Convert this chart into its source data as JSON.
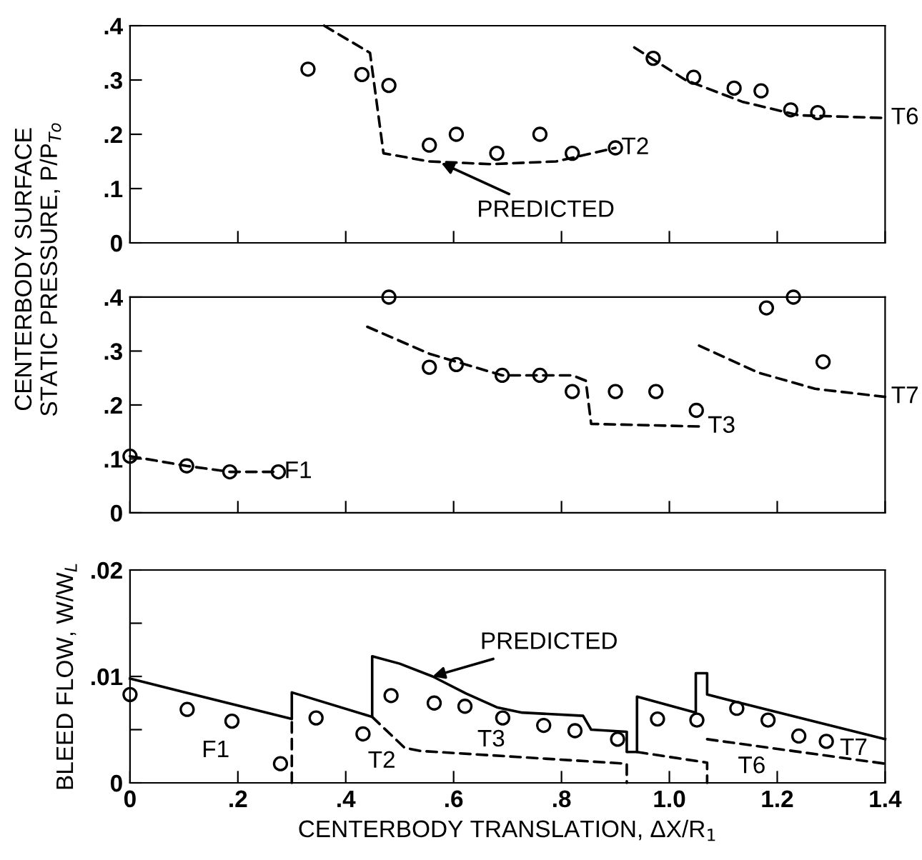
{
  "chart_data": [
    {
      "type": "line",
      "ylabel": "CENTERBODY SURFACE\nSTATIC PRESSURE, P/P$_{To}$",
      "xlim": [
        0,
        1.4
      ],
      "xticks": [
        0,
        0.2,
        0.4,
        0.6,
        0.8,
        1.0,
        1.2,
        1.4
      ],
      "ylim": [
        0,
        0.4
      ],
      "yticks": [
        0,
        {
          "value": 0.1,
          "label": ".1"
        },
        {
          "value": 0.2,
          "label": ".2"
        },
        {
          "value": 0.3,
          "label": ".3"
        },
        {
          "value": 0.4,
          "label": ".4"
        }
      ],
      "tick_labels": "y",
      "series": [
        {
          "type": "scatter",
          "marker": "circle",
          "color": "#000000",
          "x": [
            0.33,
            0.43,
            0.48,
            0.555,
            0.605,
            0.68,
            0.76,
            0.82,
            0.9,
            0.97,
            1.045,
            1.12,
            1.17,
            1.225,
            1.275
          ],
          "values": [
            0.32,
            0.31,
            0.29,
            0.18,
            0.2,
            0.165,
            0.2,
            0.165,
            0.175,
            0.34,
            0.305,
            0.285,
            0.28,
            0.245,
            0.24
          ]
        },
        {
          "line_style": "dashed",
          "color": "#000000",
          "x": [
            0.36,
            0.445,
            0.47,
            0.555,
            0.67,
            0.79,
            0.9
          ],
          "values": [
            0.4,
            0.35,
            0.165,
            0.15,
            0.145,
            0.15,
            0.175
          ]
        },
        {
          "line_style": "dashed",
          "color": "#000000",
          "x": [
            0.935,
            1.03,
            1.135,
            1.24,
            1.4
          ],
          "values": [
            0.36,
            0.3,
            0.26,
            0.235,
            0.23
          ]
        }
      ],
      "annotations": [
        {
          "text": "T2",
          "x": 0.9,
          "y": 0.175
        },
        {
          "text": "T6",
          "x": 1.4,
          "y": 0.23
        },
        {
          "text": "PREDICTED",
          "x": 0.577,
          "y": 0.147
        }
      ]
    },
    {
      "type": "line",
      "xlim": [
        0,
        1.4
      ],
      "xticks": [
        0,
        0.2,
        0.4,
        0.6,
        0.8,
        1.0,
        1.2,
        1.4
      ],
      "ylim": [
        0,
        0.4
      ],
      "yticks": [
        0,
        {
          "value": 0.1,
          "label": ".1"
        },
        {
          "value": 0.2,
          "label": ".2"
        },
        {
          "value": 0.3,
          "label": ".3"
        },
        {
          "value": 0.4,
          "label": ".4"
        }
      ],
      "tick_labels": "y",
      "series": [
        {
          "type": "scatter",
          "marker": "circle",
          "color": "#000000",
          "x": [
            0,
            0.105,
            0.185,
            0.275,
            0.48,
            0.555,
            0.605,
            0.69,
            0.76,
            0.82,
            0.9,
            0.975,
            1.05,
            1.12,
            1.18,
            1.23,
            1.285
          ],
          "values": [
            0.105,
            0.087,
            0.076,
            0.076,
            0.4,
            0.27,
            0.275,
            0.255,
            0.255,
            0.225,
            0.225,
            0.225,
            0.19,
            null,
            0.38,
            0.4,
            0.28
          ]
        },
        {
          "line_style": "dashed",
          "color": "#000000",
          "x": [
            0,
            0.105,
            0.185,
            0.275
          ],
          "values": [
            0.105,
            0.087,
            0.076,
            0.076
          ]
        },
        {
          "line_style": "dashed",
          "color": "#000000",
          "x": [
            0.44,
            0.555,
            0.69,
            0.82,
            0.845,
            0.855,
            1.06
          ],
          "values": [
            0.345,
            0.295,
            0.255,
            0.255,
            0.245,
            0.165,
            0.16
          ]
        },
        {
          "line_style": "dashed",
          "color": "#000000",
          "x": [
            1.055,
            1.165,
            1.27,
            1.4
          ],
          "values": [
            0.31,
            0.26,
            0.23,
            0.215
          ]
        }
      ],
      "annotations": [
        {
          "text": "F1",
          "x": 0.275,
          "y": 0.076
        },
        {
          "text": "T3",
          "x": 1.06,
          "y": 0.16
        },
        {
          "text": "T7",
          "x": 1.4,
          "y": 0.215
        }
      ]
    },
    {
      "type": "line",
      "ylabel": "BLEED FLOW, W/W$_{L}$",
      "xlabel": "CENTERBODY TRANSLATION, ΔX/R$_{1}$",
      "xlim": [
        0,
        1.4
      ],
      "xticks": [
        0,
        {
          "value": 0.2,
          "label": ".2"
        },
        {
          "value": 0.4,
          "label": ".4"
        },
        {
          "value": 0.6,
          "label": ".6"
        },
        {
          "value": 0.8,
          "label": ".8"
        },
        {
          "value": 1.0,
          "label": "1.0"
        },
        {
          "value": 1.2,
          "label": "1.2"
        },
        1.4
      ],
      "ylim": [
        0,
        0.02
      ],
      "yticks": [
        0,
        {
          "value": 0.005,
          "label": null
        },
        {
          "value": 0.01,
          "label": ".01"
        },
        {
          "value": 0.015,
          "label": null
        },
        {
          "value": 0.02,
          "label": ".02"
        }
      ],
      "series": [
        {
          "type": "scatter",
          "marker": "circle",
          "color": "#000000",
          "x": [
            0,
            0.106,
            0.189,
            0.279,
            0.345,
            0.432,
            0.484,
            0.564,
            0.621,
            0.691,
            0.767,
            0.825,
            0.904,
            0.978,
            1.051,
            1.125,
            1.183,
            1.24,
            1.291
          ],
          "values": [
            0.0083,
            0.0069,
            0.0058,
            0.0018,
            0.0061,
            0.0046,
            0.0082,
            0.0075,
            0.0072,
            0.0061,
            0.0054,
            0.0049,
            0.0041,
            0.006,
            0.0059,
            0.007,
            0.0059,
            0.0044,
            0.0039
          ]
        },
        {
          "line_style": "solid",
          "color": "#000000",
          "x": [
            0,
            0.3,
            0.3,
            0.449,
            0.449,
            0.5,
            0.561,
            0.623,
            0.68,
            0.727,
            0.84,
            0.855,
            0.921,
            0.921,
            0.94,
            0.94,
            1.049,
            1.049,
            1.07,
            1.07,
            1.4
          ],
          "values": [
            0.0098,
            0.006,
            0.0085,
            0.0062,
            0.0119,
            0.0112,
            0.01,
            0.0084,
            0.0071,
            0.0066,
            0.0063,
            0.005,
            0.0048,
            0.0029,
            0.0029,
            0.0081,
            0.0066,
            0.0103,
            0.0103,
            0.0083,
            0.0041
          ]
        },
        {
          "line_style": "dashed",
          "color": "#000000",
          "x": [
            0.3,
            0.3
          ],
          "values": [
            0,
            0.006
          ]
        },
        {
          "line_style": "dashed",
          "color": "#000000",
          "x": [
            0.449,
            0.509,
            0.538,
            0.921,
            0.921
          ],
          "values": [
            0.0062,
            0.0033,
            0.003,
            0.0018,
            0
          ]
        },
        {
          "line_style": "dashed",
          "color": "#000000",
          "x": [
            0.94,
            1.07,
            1.07
          ],
          "values": [
            0.0029,
            0.0019,
            0
          ]
        },
        {
          "line_style": "dashed",
          "color": "#000000",
          "x": [
            1.07,
            1.4
          ],
          "values": [
            0.0041,
            0.0018
          ]
        }
      ],
      "annotations": [
        {
          "text": "PREDICTED",
          "x": 0.561,
          "y": 0.01
        },
        "F1",
        "T2",
        "T3",
        "T6",
        "T7"
      ]
    }
  ]
}
